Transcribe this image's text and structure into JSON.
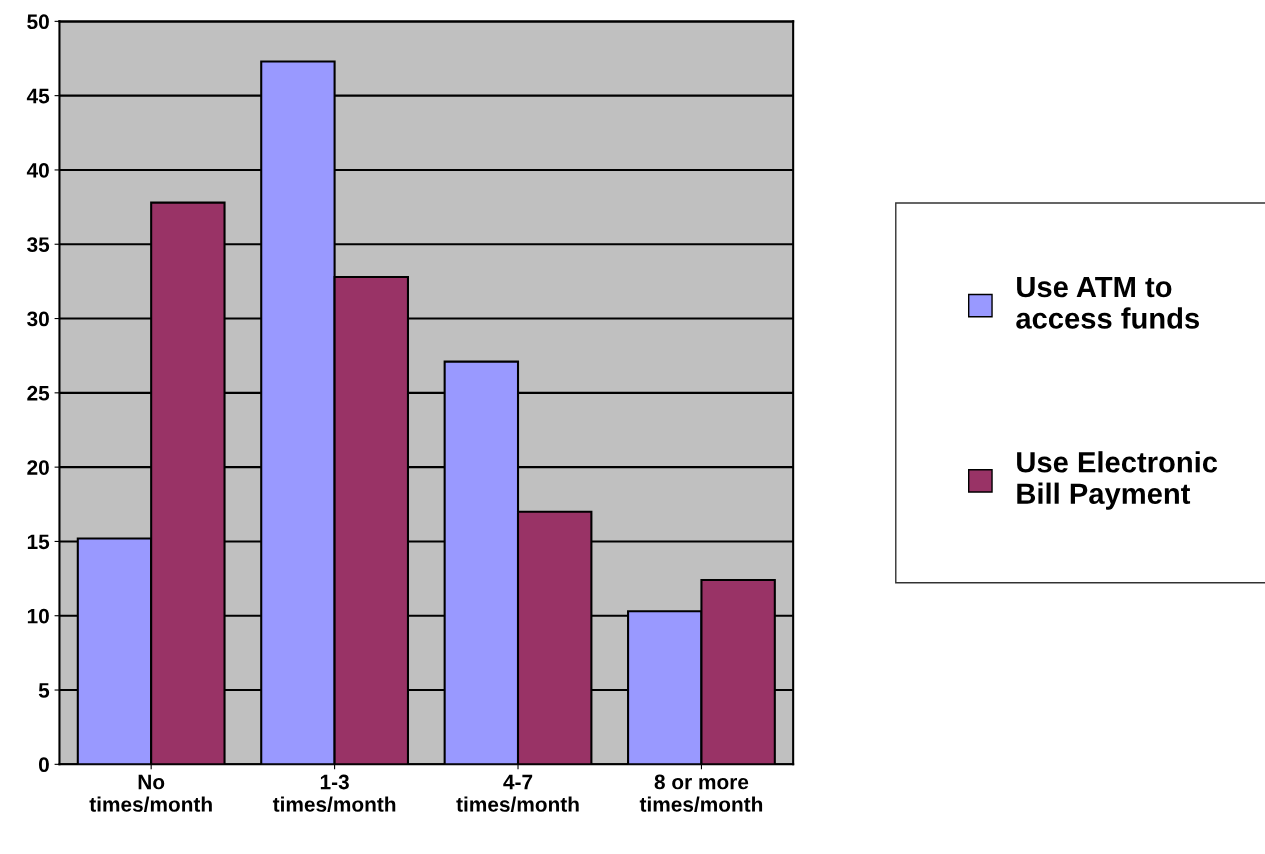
{
  "chart_data": {
    "type": "bar",
    "categories": [
      "No times/month",
      "1-3 times/month",
      "4-7 times/month",
      "8 or more times/month"
    ],
    "series": [
      {
        "name": "Use ATM to access funds",
        "color": "#9999ff",
        "values": [
          15.2,
          47.3,
          27.1,
          10.3
        ]
      },
      {
        "name": "Use Electronic Bill Payment",
        "color": "#993366",
        "values": [
          37.8,
          32.8,
          17.0,
          12.4
        ]
      }
    ],
    "ylim": [
      0,
      50
    ],
    "yticks": [
      0,
      5,
      10,
      15,
      20,
      25,
      30,
      35,
      40,
      45,
      50
    ],
    "grid": "y",
    "legend": "right"
  }
}
